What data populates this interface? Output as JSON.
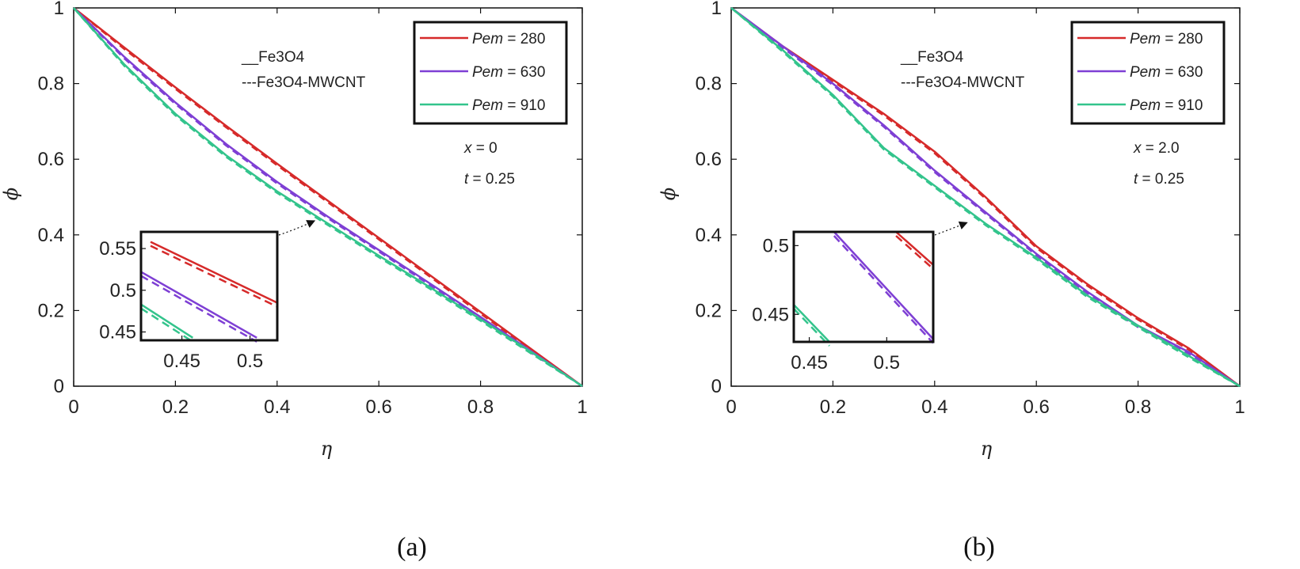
{
  "chart_data": [
    {
      "type": "line",
      "panel_label": "(a)",
      "xlabel": "η",
      "ylabel": "ϕ",
      "xlim": [
        0,
        1
      ],
      "ylim": [
        0,
        1
      ],
      "xticks": [
        "0",
        "0.2",
        "0.4",
        "0.6",
        "0.8",
        "1"
      ],
      "yticks": [
        "0",
        "0.2",
        "0.4",
        "0.6",
        "0.8",
        "1"
      ],
      "fluid_legend": {
        "solid": "__Fe3O4",
        "dashed": "---Fe3O4-MWCNT"
      },
      "legend_prefix": "Pem",
      "legend_suffix": " = ",
      "annotations": [
        {
          "var": "x",
          "text": " = 0"
        },
        {
          "var": "t",
          "text": " = 0.25"
        }
      ],
      "x": [
        0,
        0.1,
        0.2,
        0.3,
        0.4,
        0.5,
        0.6,
        0.7,
        0.8,
        0.9,
        1.0
      ],
      "series": [
        {
          "name": "280",
          "color": "#d62a2a",
          "values": [
            1.0,
            0.895,
            0.79,
            0.688,
            0.588,
            0.49,
            0.392,
            0.294,
            0.196,
            0.098,
            0.0
          ]
        },
        {
          "name": "630",
          "color": "#7e3fd4",
          "values": [
            1.0,
            0.87,
            0.75,
            0.64,
            0.54,
            0.448,
            0.36,
            0.272,
            0.183,
            0.092,
            0.0
          ]
        },
        {
          "name": "910",
          "color": "#33c48c",
          "values": [
            1.0,
            0.85,
            0.72,
            0.61,
            0.515,
            0.43,
            0.345,
            0.262,
            0.177,
            0.09,
            0.0
          ]
        }
      ],
      "inset": {
        "xlim": [
          0.42,
          0.52
        ],
        "ylim": [
          0.44,
          0.57
        ],
        "xticks": [
          "0.45",
          "0.5"
        ],
        "yticks": [
          "0.45",
          "0.5",
          "0.55"
        ],
        "lines": [
          {
            "color": "#d62a2a",
            "x": [
              0.427,
              0.52
            ],
            "y": [
              0.558,
              0.485
            ]
          },
          {
            "color": "#7e3fd4",
            "x": [
              0.42,
              0.505
            ],
            "y": [
              0.522,
              0.443
            ]
          },
          {
            "color": "#33c48c",
            "x": [
              0.42,
              0.458
            ],
            "y": [
              0.483,
              0.443
            ]
          }
        ],
        "points_to": {
          "x": 0.48,
          "y": 0.45
        }
      }
    },
    {
      "type": "line",
      "panel_label": "(b)",
      "xlabel": "η",
      "ylabel": "ϕ",
      "xlim": [
        0,
        1
      ],
      "ylim": [
        0,
        1
      ],
      "xticks": [
        "0",
        "0.2",
        "0.4",
        "0.6",
        "0.8",
        "1"
      ],
      "yticks": [
        "0",
        "0.2",
        "0.4",
        "0.6",
        "0.8",
        "1"
      ],
      "fluid_legend": {
        "solid": "__Fe3O4",
        "dashed": "---Fe3O4-MWCNT"
      },
      "legend_prefix": "Pem",
      "legend_suffix": " = ",
      "annotations": [
        {
          "var": "x",
          "text": " = 2.0"
        },
        {
          "var": "t",
          "text": " = 0.25"
        }
      ],
      "x": [
        0,
        0.1,
        0.2,
        0.3,
        0.4,
        0.5,
        0.6,
        0.7,
        0.8,
        0.9,
        1.0
      ],
      "series": [
        {
          "name": "280",
          "color": "#d62a2a",
          "values": [
            1.0,
            0.9,
            0.81,
            0.72,
            0.62,
            0.5,
            0.37,
            0.27,
            0.18,
            0.1,
            0.0
          ]
        },
        {
          "name": "630",
          "color": "#7e3fd4",
          "values": [
            1.0,
            0.9,
            0.8,
            0.69,
            0.57,
            0.46,
            0.35,
            0.25,
            0.16,
            0.09,
            0.0
          ]
        },
        {
          "name": "910",
          "color": "#33c48c",
          "values": [
            1.0,
            0.89,
            0.77,
            0.63,
            0.53,
            0.43,
            0.34,
            0.24,
            0.16,
            0.08,
            0.0
          ]
        }
      ],
      "inset": {
        "xlim": [
          0.44,
          0.53
        ],
        "ylim": [
          0.43,
          0.51
        ],
        "xticks": [
          "0.45",
          "0.5"
        ],
        "yticks": [
          "0.45",
          "0.5"
        ],
        "lines": [
          {
            "color": "#d62a2a",
            "x": [
              0.506,
              0.53
            ],
            "y": [
              0.51,
              0.486
            ]
          },
          {
            "color": "#7e3fd4",
            "x": [
              0.466,
              0.53
            ],
            "y": [
              0.51,
              0.432
            ]
          },
          {
            "color": "#33c48c",
            "x": [
              0.44,
              0.463
            ],
            "y": [
              0.457,
              0.43
            ]
          }
        ],
        "points_to": {
          "x": 0.47,
          "y": 0.445
        }
      }
    }
  ]
}
